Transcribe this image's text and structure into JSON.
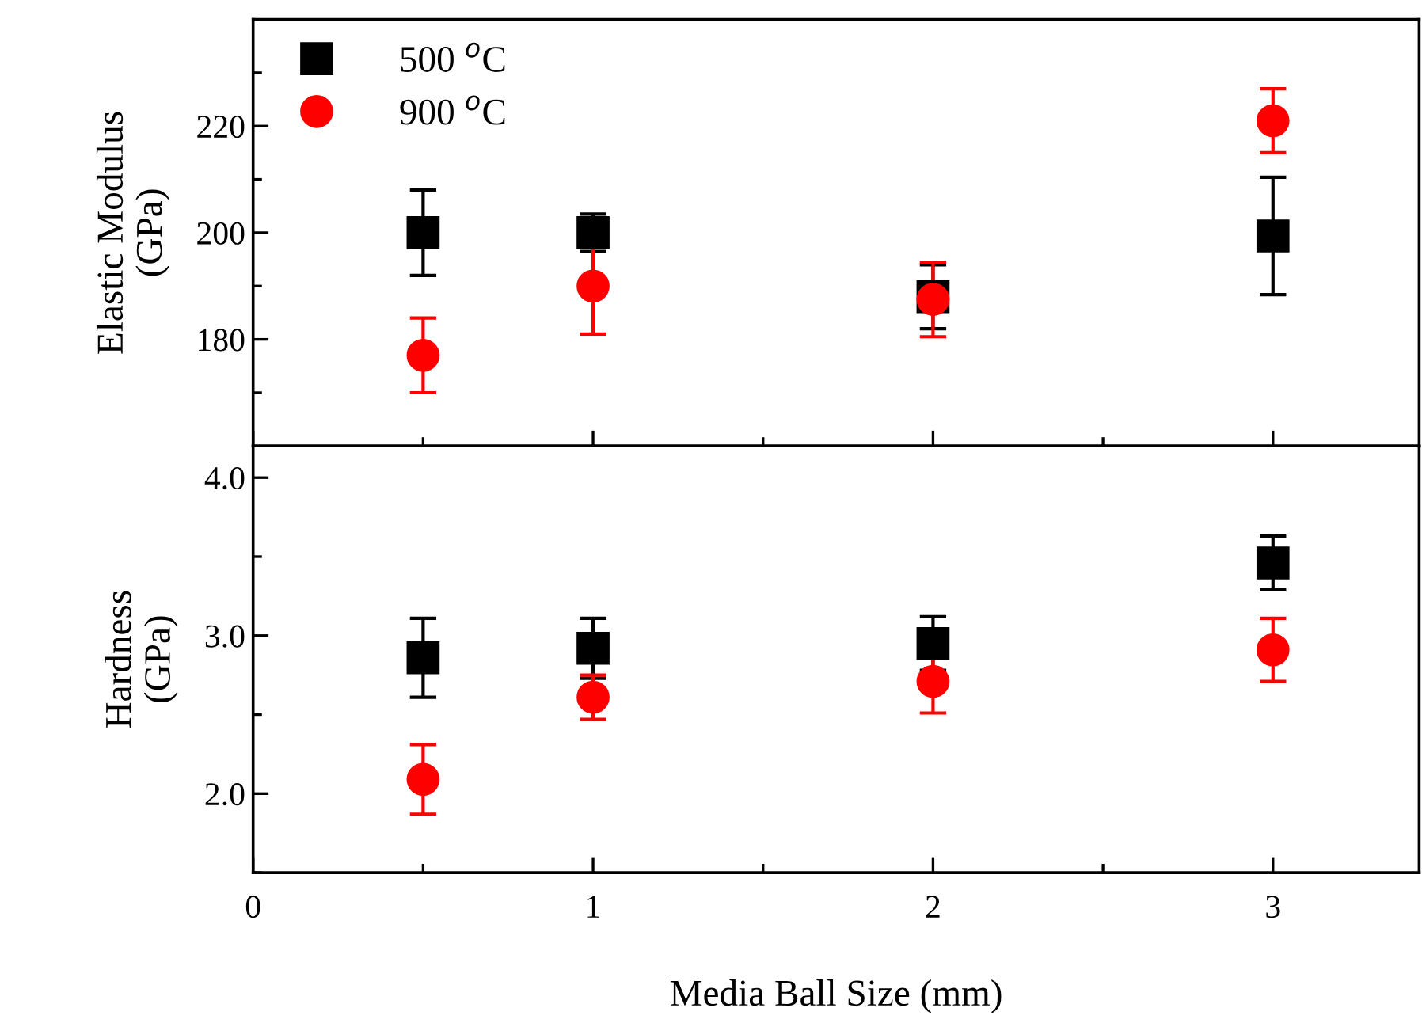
{
  "chart_data": [
    {
      "type": "scatter",
      "ylabel": "Elastic Modulus\n(GPa)",
      "x": [
        0.5,
        1,
        2,
        3
      ],
      "xlim": [
        0,
        3.43
      ],
      "xticks": [
        0,
        1,
        2,
        3
      ],
      "ylim": [
        160,
        240
      ],
      "yticks": [
        180,
        200,
        220
      ],
      "tick_labels": "y",
      "legend": "top left",
      "grid": false,
      "series": [
        {
          "name": "500 $^{o}$C",
          "color": "#000000",
          "marker": "square",
          "values": [
            200,
            200,
            188,
            199.4
          ],
          "errors": [
            8,
            3.5,
            6,
            11
          ]
        },
        {
          "name": "900 $^{o}$C",
          "color": "#ff0000",
          "marker": "circle",
          "values": [
            177,
            190,
            187.5,
            221
          ],
          "errors": [
            7,
            9,
            7,
            6
          ]
        }
      ]
    },
    {
      "type": "scatter",
      "ylabel": "Hardness\n(GPa)",
      "xlabel": "Media Ball Size (mm)",
      "x": [
        0.5,
        1,
        2,
        3
      ],
      "xlim": [
        0,
        3.43
      ],
      "xticks": [
        0,
        1,
        2,
        3
      ],
      "ylim": [
        1.5,
        4.2
      ],
      "yticks": [
        {
          "value": 2,
          "label": "2.0"
        },
        {
          "value": 3,
          "label": "3.0"
        },
        {
          "value": 4,
          "label": "4.0"
        }
      ],
      "legend": false,
      "grid": false,
      "series": [
        {
          "color": "#000000",
          "marker": "square",
          "values": [
            2.86,
            2.92,
            2.95,
            3.46
          ],
          "errors": [
            0.25,
            0.19,
            0.17,
            0.17
          ]
        },
        {
          "color": "#ff0000",
          "marker": "circle",
          "values": [
            2.09,
            2.61,
            2.71,
            2.91
          ],
          "errors": [
            0.22,
            0.14,
            0.2,
            0.2
          ]
        }
      ]
    }
  ]
}
